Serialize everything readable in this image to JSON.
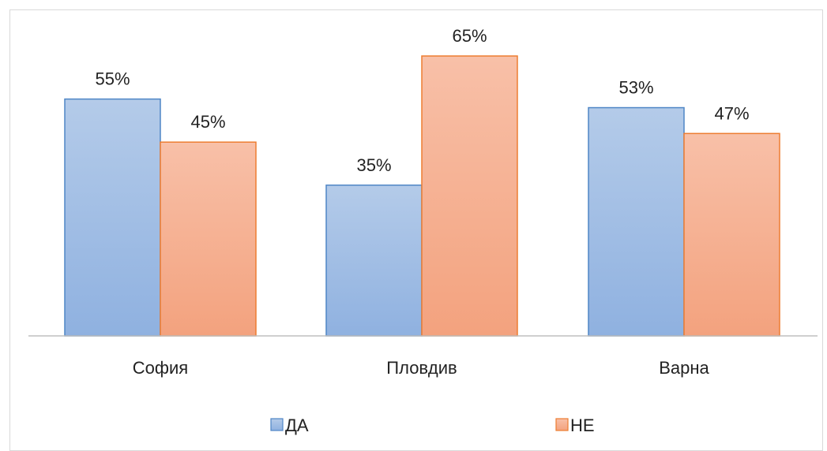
{
  "chart_data": {
    "type": "bar",
    "title": "",
    "xlabel": "",
    "ylabel": "",
    "categories": [
      "София",
      "Пловдив",
      "Варна"
    ],
    "ylim": [
      0,
      70
    ],
    "grid": false,
    "legend_position": "bottom",
    "series": [
      {
        "name": "ДА",
        "values": [
          55,
          35,
          53
        ],
        "labels": [
          "55%",
          "35%",
          "53%"
        ],
        "color_top": "#b4cbe9",
        "color_bottom": "#8fb1e0",
        "border": "#4f86c6"
      },
      {
        "name": "НЕ",
        "values": [
          45,
          65,
          47
        ],
        "labels": [
          "45%",
          "65%",
          "47%"
        ],
        "color_top": "#f8c0a8",
        "color_bottom": "#f3a27e",
        "border": "#ed7d31"
      }
    ],
    "axis_color": "#bfbfbf"
  }
}
